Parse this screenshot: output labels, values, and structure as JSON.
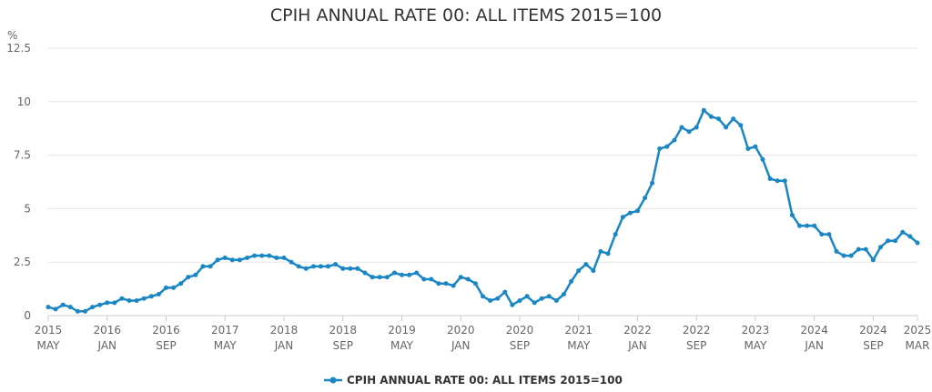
{
  "chart_data": {
    "type": "line",
    "title": "CPIH ANNUAL RATE 00: ALL ITEMS 2015=100",
    "ylabel": "%",
    "xlabel": "",
    "ylim": [
      0,
      12.5
    ],
    "yticks": [
      0,
      2.5,
      5,
      7.5,
      10,
      12.5
    ],
    "ytick_labels": [
      "0",
      "2.5",
      "5",
      "7.5",
      "10",
      "12.5"
    ],
    "grid": true,
    "legend_position": "bottom",
    "colors": {
      "series": "#1a86c4",
      "grid": "#e6e6e6",
      "axis": "#cccccc"
    },
    "x_start": "2015-05",
    "x_end": "2025-03",
    "xticks": [
      {
        "date": "2015-05",
        "year": "2015",
        "month": "MAY"
      },
      {
        "date": "2016-01",
        "year": "2016",
        "month": "JAN"
      },
      {
        "date": "2016-09",
        "year": "2016",
        "month": "SEP"
      },
      {
        "date": "2017-05",
        "year": "2017",
        "month": "MAY"
      },
      {
        "date": "2018-01",
        "year": "2018",
        "month": "JAN"
      },
      {
        "date": "2018-09",
        "year": "2018",
        "month": "SEP"
      },
      {
        "date": "2019-05",
        "year": "2019",
        "month": "MAY"
      },
      {
        "date": "2020-01",
        "year": "2020",
        "month": "JAN"
      },
      {
        "date": "2020-09",
        "year": "2020",
        "month": "SEP"
      },
      {
        "date": "2021-05",
        "year": "2021",
        "month": "MAY"
      },
      {
        "date": "2022-01",
        "year": "2022",
        "month": "JAN"
      },
      {
        "date": "2022-09",
        "year": "2022",
        "month": "SEP"
      },
      {
        "date": "2023-05",
        "year": "2023",
        "month": "MAY"
      },
      {
        "date": "2024-01",
        "year": "2024",
        "month": "JAN"
      },
      {
        "date": "2024-09",
        "year": "2024",
        "month": "SEP"
      },
      {
        "date": "2025-03",
        "year": "2025",
        "month": "MAR"
      }
    ],
    "series": [
      {
        "name": "CPIH ANNUAL RATE 00: ALL ITEMS 2015=100",
        "x": [
          "2015-05",
          "2015-06",
          "2015-07",
          "2015-08",
          "2015-09",
          "2015-10",
          "2015-11",
          "2015-12",
          "2016-01",
          "2016-02",
          "2016-03",
          "2016-04",
          "2016-05",
          "2016-06",
          "2016-07",
          "2016-08",
          "2016-09",
          "2016-10",
          "2016-11",
          "2016-12",
          "2017-01",
          "2017-02",
          "2017-03",
          "2017-04",
          "2017-05",
          "2017-06",
          "2017-07",
          "2017-08",
          "2017-09",
          "2017-10",
          "2017-11",
          "2017-12",
          "2018-01",
          "2018-02",
          "2018-03",
          "2018-04",
          "2018-05",
          "2018-06",
          "2018-07",
          "2018-08",
          "2018-09",
          "2018-10",
          "2018-11",
          "2018-12",
          "2019-01",
          "2019-02",
          "2019-03",
          "2019-04",
          "2019-05",
          "2019-06",
          "2019-07",
          "2019-08",
          "2019-09",
          "2019-10",
          "2019-11",
          "2019-12",
          "2020-01",
          "2020-02",
          "2020-03",
          "2020-04",
          "2020-05",
          "2020-06",
          "2020-07",
          "2020-08",
          "2020-09",
          "2020-10",
          "2020-11",
          "2020-12",
          "2021-01",
          "2021-02",
          "2021-03",
          "2021-04",
          "2021-05",
          "2021-06",
          "2021-07",
          "2021-08",
          "2021-09",
          "2021-10",
          "2021-11",
          "2021-12",
          "2022-01",
          "2022-02",
          "2022-03",
          "2022-04",
          "2022-05",
          "2022-06",
          "2022-07",
          "2022-08",
          "2022-09",
          "2022-10",
          "2022-11",
          "2022-12",
          "2023-01",
          "2023-02",
          "2023-03",
          "2023-04",
          "2023-05",
          "2023-06",
          "2023-07",
          "2023-08",
          "2023-09",
          "2023-10",
          "2023-11",
          "2023-12",
          "2024-01",
          "2024-02",
          "2024-03",
          "2024-04",
          "2024-05",
          "2024-06",
          "2024-07",
          "2024-08",
          "2024-09",
          "2024-10",
          "2024-11",
          "2024-12",
          "2025-01",
          "2025-02",
          "2025-03"
        ],
        "values": [
          0.4,
          0.3,
          0.5,
          0.4,
          0.2,
          0.2,
          0.4,
          0.5,
          0.6,
          0.6,
          0.8,
          0.7,
          0.7,
          0.8,
          0.9,
          1.0,
          1.3,
          1.3,
          1.5,
          1.8,
          1.9,
          2.3,
          2.3,
          2.6,
          2.7,
          2.6,
          2.6,
          2.7,
          2.8,
          2.8,
          2.8,
          2.7,
          2.7,
          2.5,
          2.3,
          2.2,
          2.3,
          2.3,
          2.3,
          2.4,
          2.2,
          2.2,
          2.2,
          2.0,
          1.8,
          1.8,
          1.8,
          2.0,
          1.9,
          1.9,
          2.0,
          1.7,
          1.7,
          1.5,
          1.5,
          1.4,
          1.8,
          1.7,
          1.5,
          0.9,
          0.7,
          0.8,
          1.1,
          0.5,
          0.7,
          0.9,
          0.6,
          0.8,
          0.9,
          0.7,
          1.0,
          1.6,
          2.1,
          2.4,
          2.1,
          3.0,
          2.9,
          3.8,
          4.6,
          4.8,
          4.9,
          5.5,
          6.2,
          7.8,
          7.9,
          8.2,
          8.8,
          8.6,
          8.8,
          9.6,
          9.3,
          9.2,
          8.8,
          9.2,
          8.9,
          7.8,
          7.9,
          7.3,
          6.4,
          6.3,
          6.3,
          4.7,
          4.2,
          4.2,
          4.2,
          3.8,
          3.8,
          3.0,
          2.8,
          2.8,
          3.1,
          3.1,
          2.6,
          3.2,
          3.5,
          3.5,
          3.9,
          3.7,
          3.4
        ]
      }
    ]
  }
}
